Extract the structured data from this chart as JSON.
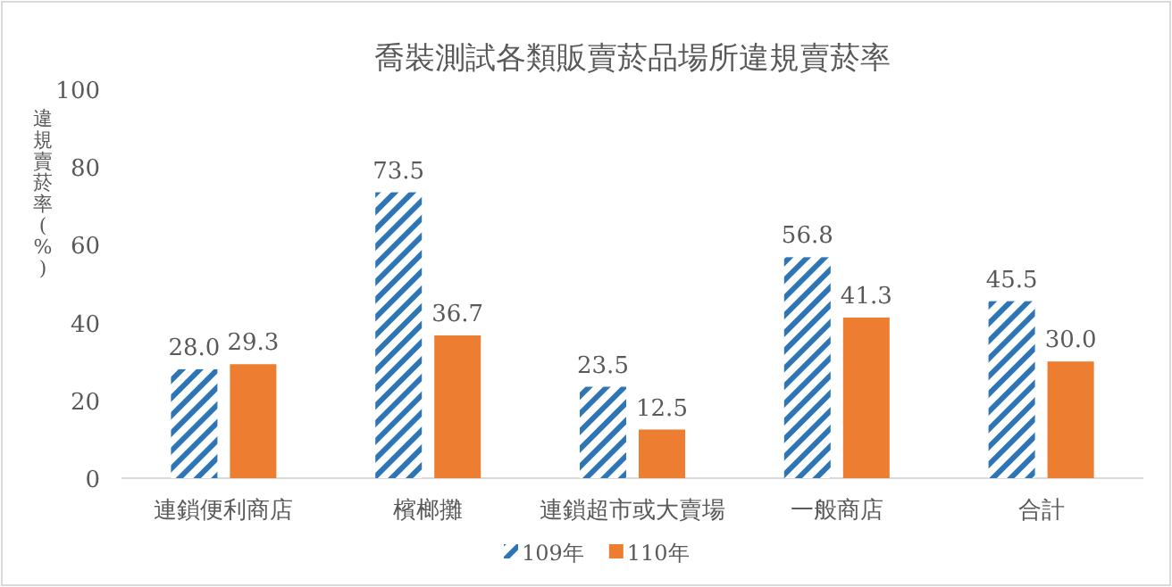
{
  "chart_data": {
    "type": "bar",
    "title": "喬裝測試各類販賣菸品場所違規賣菸率",
    "ylabel": "違規賣菸率(%)",
    "categories": [
      "連鎖便利商店",
      "檳榔攤",
      "連鎖超市或大賣場",
      "一般商店",
      "合計"
    ],
    "series": [
      {
        "name": "109年",
        "color": "#2e75b6",
        "values": [
          28.0,
          73.5,
          23.5,
          56.8,
          45.5
        ],
        "value_labels": [
          "28.0",
          "73.5",
          "23.5",
          "56.8",
          "45.5"
        ]
      },
      {
        "name": "110年",
        "color": "#ed7d31",
        "values": [
          29.3,
          36.7,
          12.5,
          41.3,
          30.0
        ],
        "value_labels": [
          "29.3",
          "36.7",
          "12.5",
          "41.3",
          "30.0"
        ]
      }
    ],
    "ylim": [
      0,
      100
    ],
    "yticks": [
      0,
      20,
      40,
      60,
      80,
      100
    ],
    "legend": "bottom",
    "grid": false
  }
}
